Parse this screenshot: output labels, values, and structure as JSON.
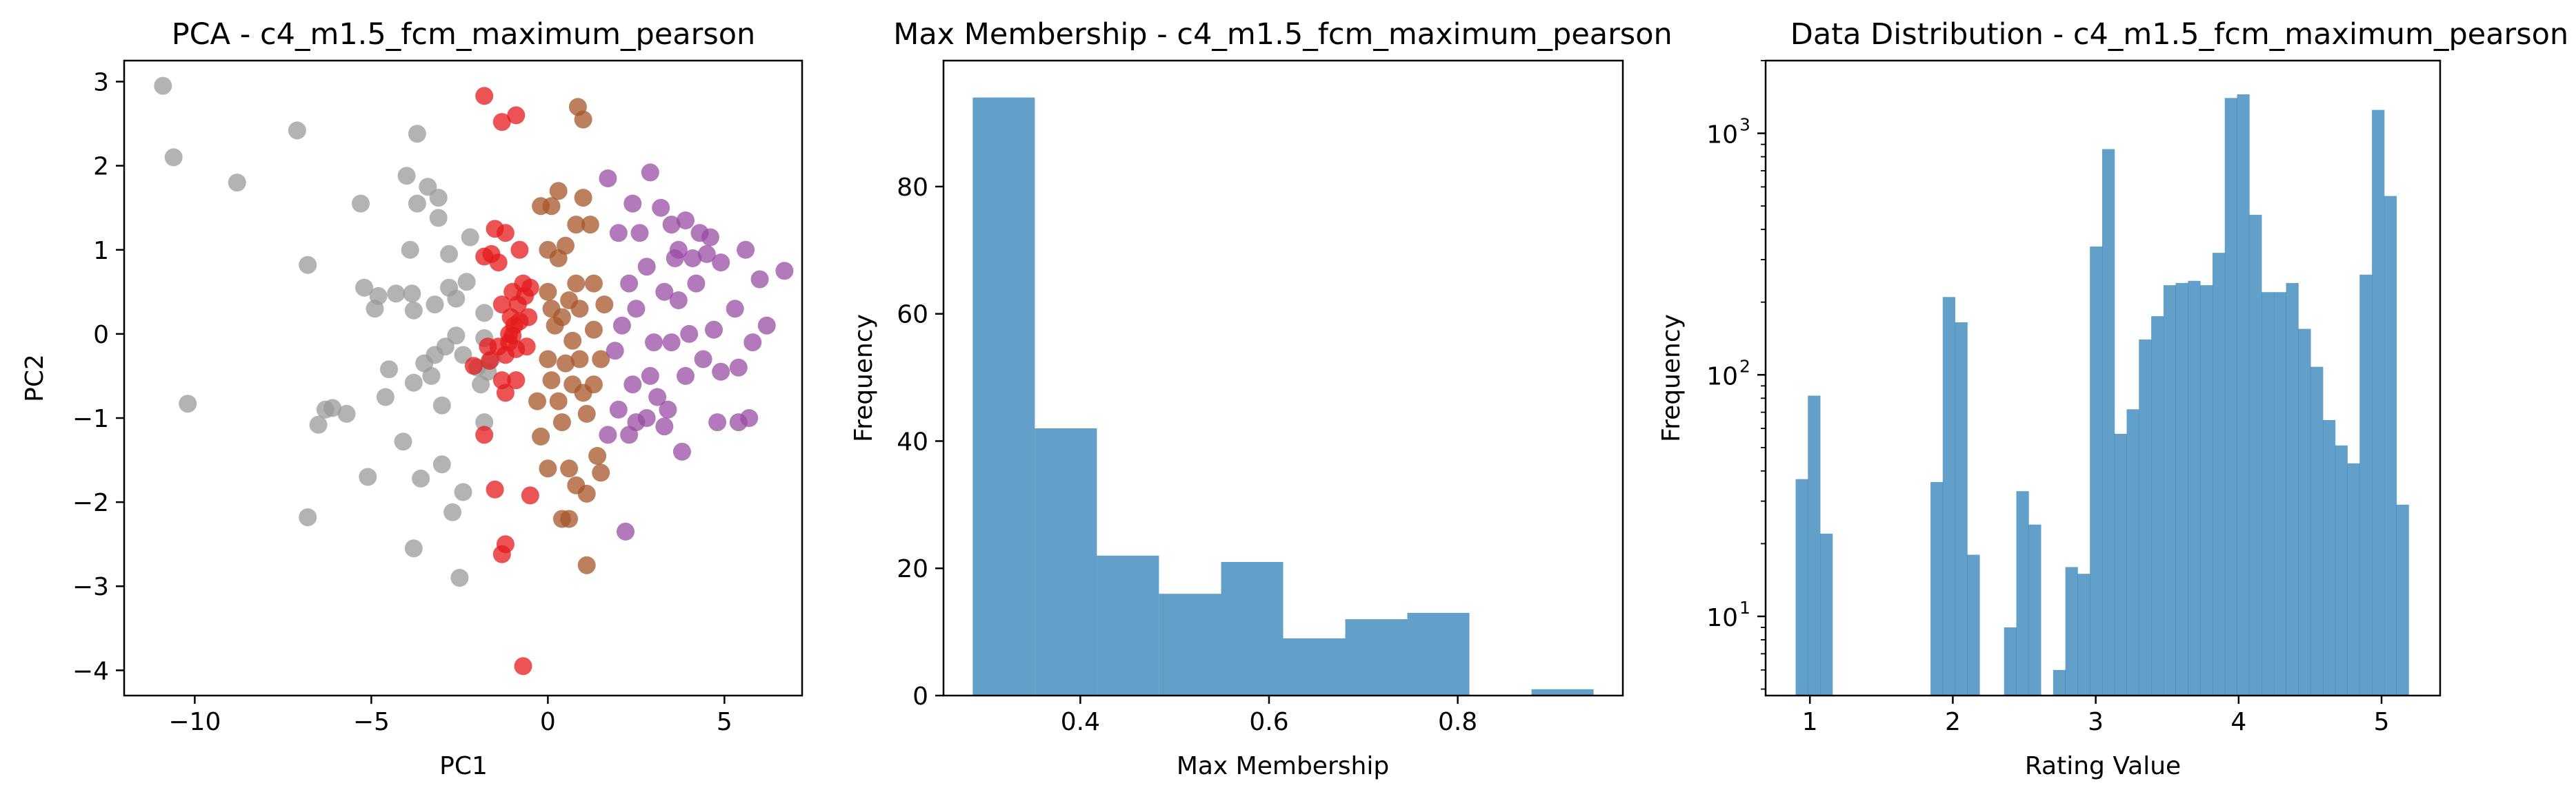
{
  "chart_data": [
    {
      "type": "scatter",
      "title": "PCA - c4_m1.5_fcm_maximum_pearson",
      "xlabel": "PC1",
      "ylabel": "PC2",
      "xlim": [
        -12,
        7.2
      ],
      "ylim": [
        -4.3,
        3.25
      ],
      "xticks": [
        -10,
        -5,
        0,
        5
      ],
      "yticks": [
        -4,
        -3,
        -2,
        -1,
        0,
        1,
        2,
        3
      ],
      "grid": false,
      "colors": {
        "cluster_gray": "#999999",
        "cluster_red": "#e41a1c",
        "cluster_brown": "#a65628",
        "cluster_purple": "#984ea3"
      },
      "series": [
        {
          "color": "#999999",
          "points": [
            [
              -10.9,
              2.95
            ],
            [
              -10.6,
              2.1
            ],
            [
              -10.2,
              -0.83
            ],
            [
              -8.8,
              1.8
            ],
            [
              -7.1,
              2.42
            ],
            [
              -6.8,
              0.82
            ],
            [
              -6.8,
              -2.18
            ],
            [
              -6.5,
              -1.08
            ],
            [
              -6.3,
              -0.9
            ],
            [
              -6.1,
              -0.88
            ],
            [
              -5.7,
              -0.95
            ],
            [
              -5.3,
              1.55
            ],
            [
              -5.2,
              0.55
            ],
            [
              -5.1,
              -1.7
            ],
            [
              -4.9,
              0.3
            ],
            [
              -4.8,
              0.45
            ],
            [
              -4.6,
              -0.75
            ],
            [
              -4.5,
              -0.42
            ],
            [
              -4.3,
              0.48
            ],
            [
              -4.1,
              -1.28
            ],
            [
              -4.0,
              1.88
            ],
            [
              -3.9,
              1.0
            ],
            [
              -3.85,
              0.48
            ],
            [
              -3.8,
              -2.55
            ],
            [
              -3.8,
              0.28
            ],
            [
              -3.8,
              -0.58
            ],
            [
              -3.7,
              2.38
            ],
            [
              -3.7,
              1.55
            ],
            [
              -3.6,
              -1.72
            ],
            [
              -3.5,
              -0.35
            ],
            [
              -3.4,
              1.75
            ],
            [
              -3.3,
              -0.5
            ],
            [
              -3.2,
              -0.25
            ],
            [
              -3.1,
              1.38
            ],
            [
              -3.1,
              1.62
            ],
            [
              -3.0,
              -0.85
            ],
            [
              -3.0,
              -1.55
            ],
            [
              -2.9,
              -0.15
            ],
            [
              -2.8,
              0.55
            ],
            [
              -2.8,
              0.95
            ],
            [
              -2.7,
              -2.12
            ],
            [
              -2.6,
              0.42
            ],
            [
              -2.5,
              -2.9
            ],
            [
              -2.4,
              -0.25
            ],
            [
              -2.4,
              -1.88
            ],
            [
              -2.3,
              0.62
            ],
            [
              -2.2,
              1.15
            ],
            [
              -2.0,
              -0.4
            ],
            [
              -1.9,
              -0.6
            ],
            [
              -1.8,
              -0.05
            ],
            [
              -1.8,
              0.25
            ],
            [
              -1.8,
              -1.05
            ],
            [
              -1.7,
              -0.45
            ],
            [
              -1.6,
              -0.3
            ],
            [
              -3.2,
              0.35
            ],
            [
              -2.6,
              -0.02
            ]
          ]
        },
        {
          "color": "#e41a1c",
          "points": [
            [
              -1.8,
              2.83
            ],
            [
              -1.3,
              2.52
            ],
            [
              -0.9,
              2.6
            ],
            [
              -1.8,
              -1.2
            ],
            [
              -1.6,
              0.95
            ],
            [
              -1.5,
              1.25
            ],
            [
              -1.4,
              0.85
            ],
            [
              -1.3,
              0.35
            ],
            [
              -1.2,
              1.2
            ],
            [
              -1.1,
              0.0
            ],
            [
              -1.05,
              0.2
            ],
            [
              -1.0,
              0.5
            ],
            [
              -0.95,
              0.1
            ],
            [
              -0.9,
              -0.18
            ],
            [
              -0.85,
              0.35
            ],
            [
              -0.8,
              1.0
            ],
            [
              -0.7,
              0.6
            ],
            [
              -0.65,
              0.45
            ],
            [
              -0.6,
              -0.15
            ],
            [
              -0.55,
              0.2
            ],
            [
              -0.5,
              0.55
            ],
            [
              -1.7,
              -0.15
            ],
            [
              -1.4,
              -0.15
            ],
            [
              -1.3,
              -0.55
            ],
            [
              -1.2,
              -0.7
            ],
            [
              -0.9,
              -0.55
            ],
            [
              -1.0,
              -0.02
            ],
            [
              -1.2,
              -0.25
            ],
            [
              -1.5,
              -1.85
            ],
            [
              -1.2,
              -2.5
            ],
            [
              -1.3,
              -2.62
            ],
            [
              -0.5,
              -1.92
            ],
            [
              -0.7,
              -3.95
            ],
            [
              -1.8,
              0.92
            ],
            [
              -2.1,
              -0.38
            ],
            [
              -1.65,
              -0.32
            ],
            [
              -0.8,
              0.15
            ],
            [
              -1.1,
              -0.1
            ]
          ]
        },
        {
          "color": "#a65628",
          "points": [
            [
              0.85,
              2.7
            ],
            [
              1.0,
              2.55
            ],
            [
              1.0,
              1.62
            ],
            [
              -0.2,
              1.52
            ],
            [
              0.1,
              1.52
            ],
            [
              0.3,
              1.7
            ],
            [
              0.8,
              1.3
            ],
            [
              1.2,
              1.3
            ],
            [
              0.0,
              1.0
            ],
            [
              0.3,
              0.9
            ],
            [
              0.5,
              1.05
            ],
            [
              1.3,
              0.6
            ],
            [
              0.8,
              0.6
            ],
            [
              0.0,
              0.5
            ],
            [
              0.1,
              0.3
            ],
            [
              0.4,
              0.2
            ],
            [
              0.9,
              0.3
            ],
            [
              1.3,
              0.05
            ],
            [
              1.5,
              -0.3
            ],
            [
              0.7,
              -0.08
            ],
            [
              0.5,
              -0.35
            ],
            [
              0.1,
              -0.55
            ],
            [
              0.3,
              -0.8
            ],
            [
              0.7,
              -0.6
            ],
            [
              1.0,
              -0.7
            ],
            [
              1.3,
              -0.6
            ],
            [
              1.1,
              -0.95
            ],
            [
              0.4,
              -1.05
            ],
            [
              -0.2,
              -1.22
            ],
            [
              0.0,
              -1.6
            ],
            [
              0.6,
              -1.6
            ],
            [
              0.8,
              -1.8
            ],
            [
              1.1,
              -1.9
            ],
            [
              1.4,
              -1.45
            ],
            [
              1.5,
              -1.65
            ],
            [
              0.4,
              -2.2
            ],
            [
              0.6,
              -2.2
            ],
            [
              1.1,
              -2.75
            ],
            [
              0.0,
              -0.3
            ],
            [
              -0.3,
              -0.8
            ],
            [
              0.2,
              0.1
            ],
            [
              1.6,
              0.35
            ],
            [
              0.9,
              -0.3
            ],
            [
              0.6,
              0.4
            ]
          ]
        },
        {
          "color": "#984ea3",
          "points": [
            [
              1.7,
              1.85
            ],
            [
              2.4,
              1.55
            ],
            [
              2.9,
              1.92
            ],
            [
              3.2,
              1.5
            ],
            [
              3.5,
              1.3
            ],
            [
              3.9,
              1.35
            ],
            [
              4.3,
              1.2
            ],
            [
              4.6,
              1.15
            ],
            [
              2.0,
              1.2
            ],
            [
              2.6,
              1.2
            ],
            [
              3.7,
              1.0
            ],
            [
              4.1,
              0.9
            ],
            [
              4.9,
              0.85
            ],
            [
              5.6,
              1.0
            ],
            [
              6.7,
              0.75
            ],
            [
              2.3,
              0.6
            ],
            [
              2.8,
              0.8
            ],
            [
              3.3,
              0.5
            ],
            [
              3.7,
              0.4
            ],
            [
              4.2,
              0.6
            ],
            [
              5.3,
              0.3
            ],
            [
              6.0,
              0.65
            ],
            [
              6.2,
              0.1
            ],
            [
              2.1,
              0.1
            ],
            [
              2.5,
              0.3
            ],
            [
              3.0,
              -0.1
            ],
            [
              3.5,
              -0.1
            ],
            [
              4.0,
              0.0
            ],
            [
              4.7,
              0.05
            ],
            [
              5.8,
              -0.1
            ],
            [
              1.9,
              -0.2
            ],
            [
              2.4,
              -0.6
            ],
            [
              2.9,
              -0.5
            ],
            [
              3.4,
              -0.9
            ],
            [
              3.9,
              -0.5
            ],
            [
              4.4,
              -0.3
            ],
            [
              4.9,
              -0.45
            ],
            [
              5.4,
              -0.4
            ],
            [
              2.0,
              -0.9
            ],
            [
              2.3,
              -1.2
            ],
            [
              2.8,
              -1.0
            ],
            [
              3.3,
              -1.1
            ],
            [
              3.8,
              -1.4
            ],
            [
              4.8,
              -1.05
            ],
            [
              5.7,
              -1.0
            ],
            [
              5.4,
              -1.05
            ],
            [
              1.7,
              -1.2
            ],
            [
              2.2,
              -2.35
            ],
            [
              2.5,
              -1.05
            ],
            [
              3.1,
              -0.75
            ],
            [
              3.6,
              0.9
            ],
            [
              4.5,
              0.95
            ]
          ]
        }
      ]
    },
    {
      "type": "bar",
      "title": "Max Membership - c4_m1.5_fcm_maximum_pearson",
      "xlabel": "Max Membership",
      "ylabel": "Frequency",
      "xlim": [
        0.255,
        0.975
      ],
      "ylim": [
        0,
        99.8
      ],
      "xticks": [
        0.4,
        0.6,
        0.8
      ],
      "yticks": [
        0,
        20,
        40,
        60,
        80
      ],
      "color": "#1f77b4",
      "bins": [
        {
          "x0": 0.286,
          "x1": 0.3518,
          "value": 94
        },
        {
          "x0": 0.3518,
          "x1": 0.4176,
          "value": 42
        },
        {
          "x0": 0.4176,
          "x1": 0.4834,
          "value": 22
        },
        {
          "x0": 0.4834,
          "x1": 0.5492,
          "value": 16
        },
        {
          "x0": 0.5492,
          "x1": 0.615,
          "value": 21
        },
        {
          "x0": 0.615,
          "x1": 0.6808,
          "value": 9
        },
        {
          "x0": 0.6808,
          "x1": 0.7466,
          "value": 12
        },
        {
          "x0": 0.7466,
          "x1": 0.8124,
          "value": 13
        },
        {
          "x0": 0.8124,
          "x1": 0.8782,
          "value": 0
        },
        {
          "x0": 0.8782,
          "x1": 0.944,
          "value": 1
        }
      ]
    },
    {
      "type": "bar",
      "title": "Data Distribution - c4_m1.5_fcm_maximum_pearson",
      "xlabel": "Rating Value",
      "ylabel": "Frequency",
      "yscale": "log",
      "xlim": [
        0.69,
        5.41
      ],
      "ylim": [
        4.7,
        2000
      ],
      "xticks": [
        1,
        2,
        3,
        4,
        5
      ],
      "yticks": [
        10,
        100,
        1000
      ],
      "ytick_labels": [
        "10",
        "10",
        "10"
      ],
      "ytick_exponents": [
        "1",
        "2",
        "3"
      ],
      "color": "#1f77b4",
      "bin_start": 0.9,
      "bin_width": 0.0858,
      "values": [
        37,
        82,
        22,
        0,
        0,
        0,
        0,
        0,
        0,
        0,
        0,
        36,
        210,
        165,
        18,
        0,
        0,
        9,
        33,
        24,
        0,
        6,
        16,
        15,
        340,
        860,
        57,
        72,
        140,
        175,
        235,
        240,
        245,
        235,
        320,
        1400,
        1450,
        460,
        220,
        220,
        240,
        155,
        108,
        65,
        51,
        43,
        260,
        1250,
        550,
        29
      ]
    }
  ]
}
